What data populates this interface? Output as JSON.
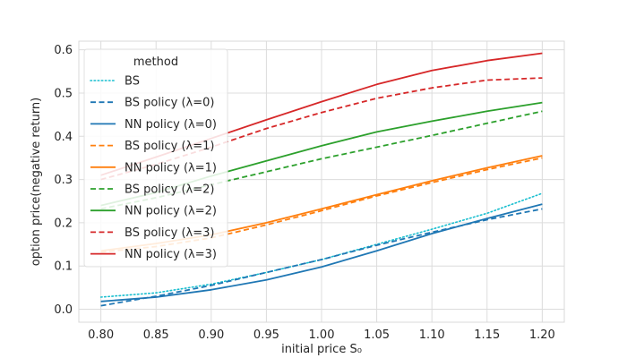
{
  "chart_data": {
    "type": "line",
    "title": "",
    "xlabel": "initial price S₀",
    "ylabel": "option price(negative return)",
    "xlim": [
      0.78,
      1.22
    ],
    "ylim": [
      -0.03,
      0.62
    ],
    "xticks": [
      0.8,
      0.85,
      0.9,
      0.95,
      1.0,
      1.05,
      1.1,
      1.15,
      1.2
    ],
    "xtick_labels": [
      "0.80",
      "0.85",
      "0.90",
      "0.95",
      "1.00",
      "1.05",
      "1.10",
      "1.15",
      "1.20"
    ],
    "yticks": [
      0.0,
      0.1,
      0.2,
      0.3,
      0.4,
      0.5,
      0.6
    ],
    "ytick_labels": [
      "0.0",
      "0.1",
      "0.2",
      "0.3",
      "0.4",
      "0.5",
      "0.6"
    ],
    "grid": true,
    "legend": {
      "title": "method",
      "position": "top-left"
    },
    "x": [
      0.8,
      0.85,
      0.9,
      0.95,
      1.0,
      1.05,
      1.1,
      1.15,
      1.2
    ],
    "series": [
      {
        "name": "BS",
        "color": "#17becf",
        "style": "dotted",
        "values": [
          0.028,
          0.038,
          0.058,
          0.085,
          0.115,
          0.15,
          0.185,
          0.222,
          0.268
        ]
      },
      {
        "name": "BS policy (λ=0)",
        "color": "#1f77b4",
        "style": "dashed",
        "values": [
          0.008,
          0.03,
          0.055,
          0.085,
          0.115,
          0.148,
          0.178,
          0.207,
          0.232
        ]
      },
      {
        "name": "NN policy (λ=0)",
        "color": "#1f77b4",
        "style": "solid",
        "values": [
          0.018,
          0.028,
          0.045,
          0.068,
          0.098,
          0.135,
          0.175,
          0.21,
          0.243
        ]
      },
      {
        "name": "BS policy (λ=1)",
        "color": "#ff7f0e",
        "style": "dashed",
        "values": [
          0.132,
          0.145,
          0.165,
          0.195,
          0.228,
          0.262,
          0.293,
          0.323,
          0.35
        ]
      },
      {
        "name": "NN policy (λ=1)",
        "color": "#ff7f0e",
        "style": "solid",
        "values": [
          0.135,
          0.152,
          0.172,
          0.2,
          0.232,
          0.265,
          0.297,
          0.327,
          0.355
        ]
      },
      {
        "name": "BS policy (λ=2)",
        "color": "#2ca02c",
        "style": "dashed",
        "values": [
          0.232,
          0.258,
          0.288,
          0.318,
          0.348,
          0.375,
          0.402,
          0.43,
          0.458
        ]
      },
      {
        "name": "NN policy (λ=2)",
        "color": "#2ca02c",
        "style": "solid",
        "values": [
          0.24,
          0.27,
          0.308,
          0.343,
          0.378,
          0.41,
          0.435,
          0.458,
          0.478
        ]
      },
      {
        "name": "BS policy (λ=3)",
        "color": "#d62728",
        "style": "dashed",
        "values": [
          0.3,
          0.335,
          0.375,
          0.418,
          0.455,
          0.488,
          0.512,
          0.53,
          0.535
        ]
      },
      {
        "name": "NN policy (λ=3)",
        "color": "#d62728",
        "style": "solid",
        "values": [
          0.31,
          0.352,
          0.395,
          0.438,
          0.48,
          0.52,
          0.552,
          0.575,
          0.592
        ]
      }
    ]
  }
}
